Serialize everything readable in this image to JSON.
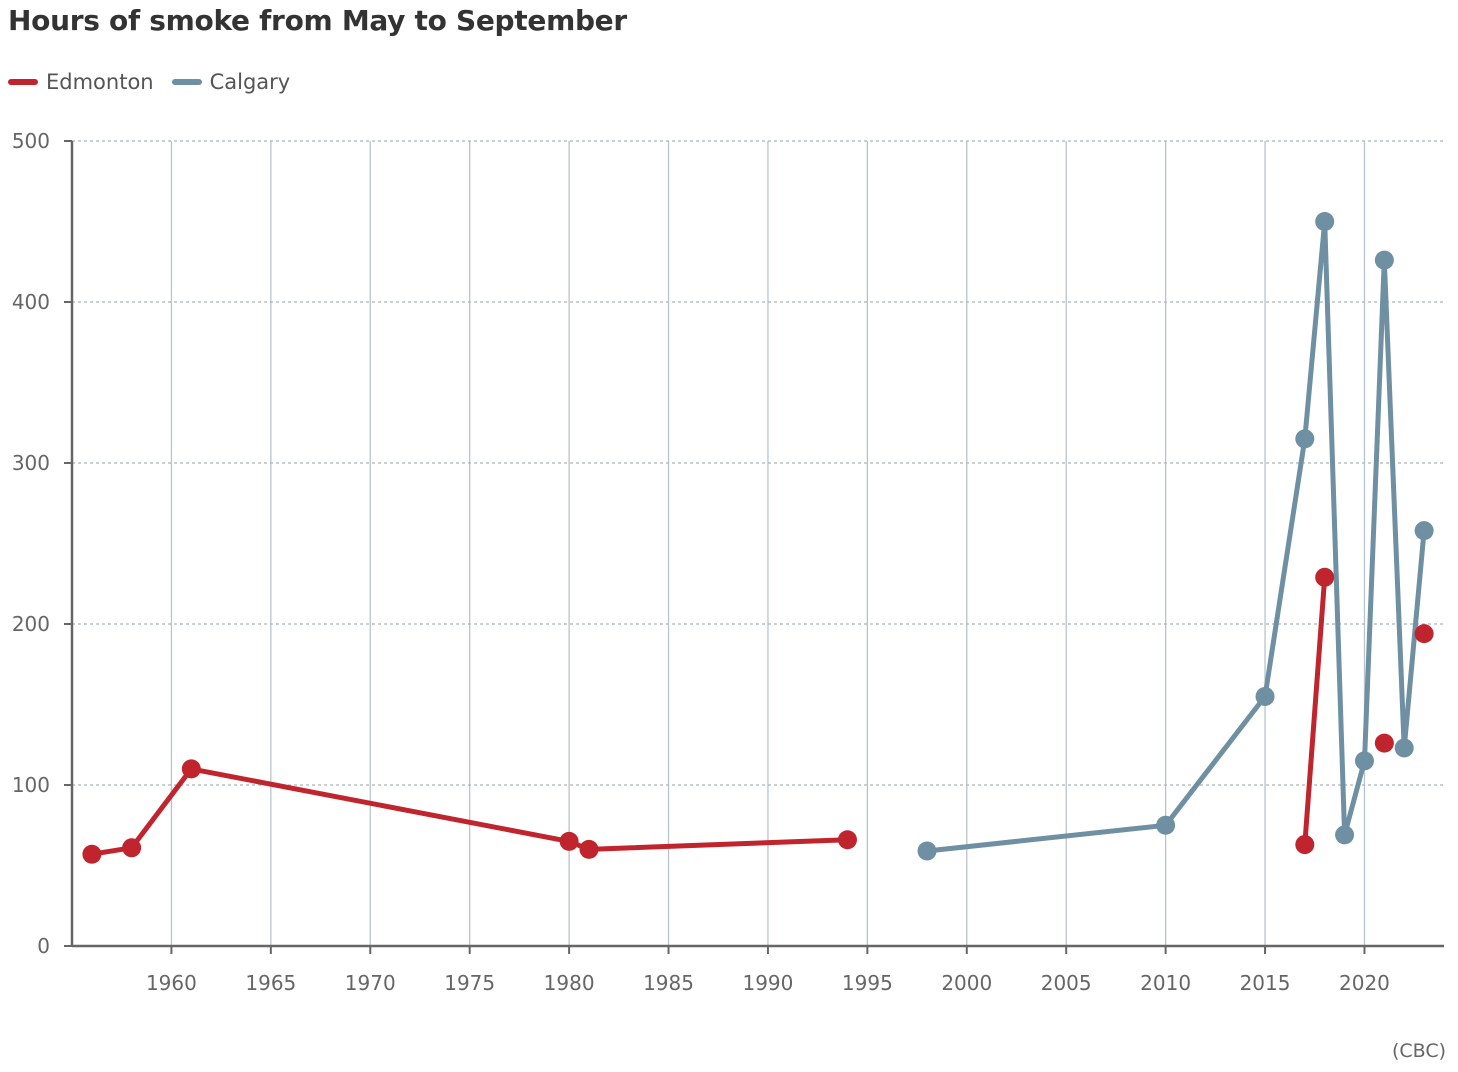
{
  "chart_data": {
    "type": "line",
    "title": "Hours of smoke from May to September",
    "source": "(CBC)",
    "xlabel": "",
    "ylabel": "",
    "xlim": [
      1955,
      2024
    ],
    "ylim": [
      0,
      500
    ],
    "x_ticks": [
      1960,
      1965,
      1970,
      1975,
      1980,
      1985,
      1990,
      1995,
      2000,
      2005,
      2010,
      2015,
      2020
    ],
    "y_ticks": [
      0,
      100,
      200,
      300,
      400,
      500
    ],
    "grid": true,
    "legend_position": "top-left",
    "series": [
      {
        "name": "Edmonton",
        "color": "#c0252e",
        "segments": [
          [
            [
              1956,
              57
            ],
            [
              1958,
              61
            ],
            [
              1961,
              110
            ],
            [
              1980,
              65
            ],
            [
              1981,
              60
            ],
            [
              1994,
              66
            ]
          ],
          [
            [
              2017,
              63
            ],
            [
              2018,
              229
            ]
          ]
        ],
        "points": [
          [
            2021,
            126
          ],
          [
            2023,
            194
          ]
        ]
      },
      {
        "name": "Calgary",
        "color": "#6f8fa3",
        "segments": [
          [
            [
              1998,
              59
            ],
            [
              2010,
              75
            ],
            [
              2015,
              155
            ],
            [
              2017,
              315
            ],
            [
              2018,
              450
            ],
            [
              2019,
              69
            ],
            [
              2020,
              115
            ],
            [
              2021,
              426
            ],
            [
              2022,
              123
            ],
            [
              2023,
              258
            ]
          ]
        ],
        "points": []
      }
    ]
  }
}
